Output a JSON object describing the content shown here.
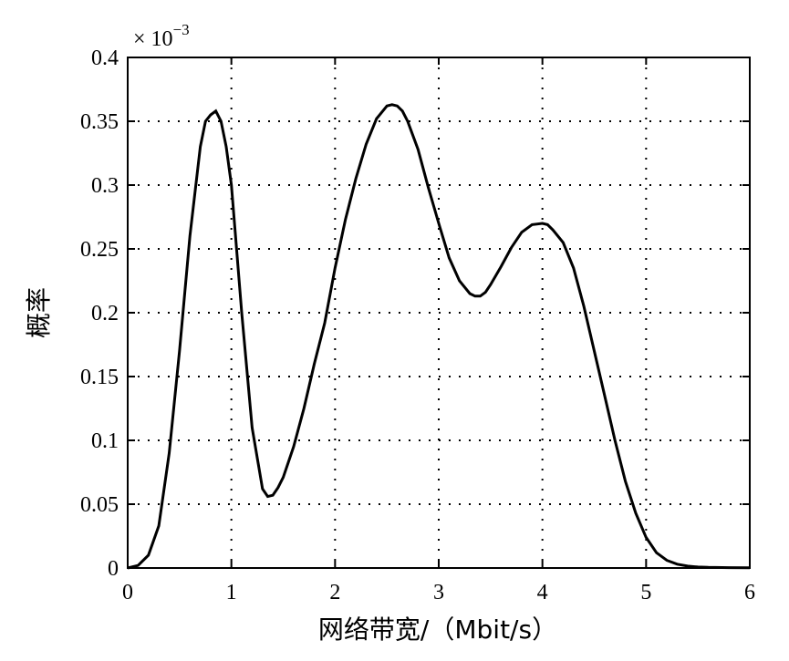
{
  "chart_data": {
    "type": "line",
    "xlabel": "网络带宽/（Mbit/s）",
    "ylabel": "概率",
    "y_multiplier": "× 10",
    "y_multiplier_exp": "−3",
    "xlim": [
      0,
      6
    ],
    "ylim": [
      0,
      0.4
    ],
    "x_ticks": [
      0,
      1,
      2,
      3,
      4,
      5,
      6
    ],
    "x_tick_labels": [
      "0",
      "1",
      "2",
      "3",
      "4",
      "5",
      "6"
    ],
    "y_ticks": [
      0,
      0.05,
      0.1,
      0.15,
      0.2,
      0.25,
      0.3,
      0.35,
      0.4
    ],
    "y_tick_labels": [
      "0",
      "0.05",
      "0.1",
      "0.15",
      "0.2",
      "0.25",
      "0.3",
      "0.35",
      "0.4"
    ],
    "grid": true,
    "grid_style": "dotted",
    "series": [
      {
        "color": "#000000",
        "x": [
          0,
          0.1,
          0.2,
          0.3,
          0.4,
          0.5,
          0.6,
          0.7,
          0.75,
          0.8,
          0.85,
          0.9,
          0.95,
          1.0,
          1.1,
          1.2,
          1.3,
          1.35,
          1.4,
          1.45,
          1.5,
          1.6,
          1.7,
          1.8,
          1.9,
          2.0,
          2.1,
          2.2,
          2.3,
          2.4,
          2.5,
          2.55,
          2.6,
          2.65,
          2.7,
          2.8,
          2.9,
          3.0,
          3.1,
          3.2,
          3.3,
          3.35,
          3.4,
          3.45,
          3.5,
          3.6,
          3.7,
          3.8,
          3.9,
          4.0,
          4.05,
          4.1,
          4.2,
          4.3,
          4.4,
          4.5,
          4.6,
          4.7,
          4.8,
          4.9,
          5.0,
          5.1,
          5.2,
          5.3,
          5.4,
          5.5,
          5.6,
          5.8,
          6.0
        ],
        "y": [
          0.0,
          0.002,
          0.01,
          0.033,
          0.09,
          0.17,
          0.26,
          0.33,
          0.35,
          0.355,
          0.358,
          0.35,
          0.33,
          0.3,
          0.2,
          0.11,
          0.062,
          0.056,
          0.057,
          0.063,
          0.071,
          0.095,
          0.125,
          0.16,
          0.192,
          0.235,
          0.273,
          0.305,
          0.332,
          0.352,
          0.362,
          0.363,
          0.362,
          0.358,
          0.35,
          0.328,
          0.298,
          0.27,
          0.243,
          0.225,
          0.215,
          0.213,
          0.213,
          0.216,
          0.222,
          0.236,
          0.251,
          0.263,
          0.269,
          0.27,
          0.269,
          0.265,
          0.255,
          0.235,
          0.205,
          0.17,
          0.135,
          0.1,
          0.068,
          0.043,
          0.024,
          0.012,
          0.006,
          0.003,
          0.0015,
          0.0008,
          0.0005,
          0.0003,
          0.0002
        ]
      }
    ]
  }
}
